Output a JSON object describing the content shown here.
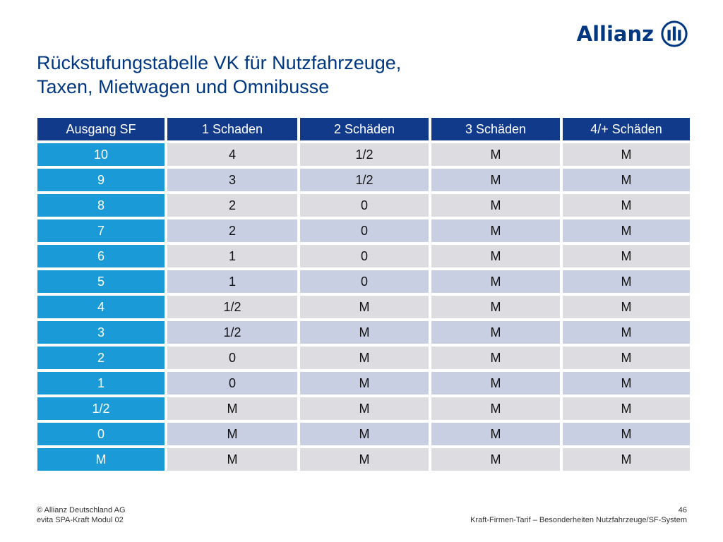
{
  "brand": {
    "name": "Allianz",
    "color": "#003781",
    "logo_icon": "allianz-eagle-icon"
  },
  "title": {
    "line1": "Rückstufungstabelle VK für Nutzfahrzeuge,",
    "line2": "Taxen, Mietwagen und Omnibusse"
  },
  "table": {
    "headers": [
      "Ausgang SF",
      "1 Schaden",
      "2 Schäden",
      "3 Schäden",
      "4/+ Schäden"
    ],
    "rows": [
      [
        "10",
        "4",
        "1/2",
        "M",
        "M"
      ],
      [
        "9",
        "3",
        "1/2",
        "M",
        "M"
      ],
      [
        "8",
        "2",
        "0",
        "M",
        "M"
      ],
      [
        "7",
        "2",
        "0",
        "M",
        "M"
      ],
      [
        "6",
        "1",
        "0",
        "M",
        "M"
      ],
      [
        "5",
        "1",
        "0",
        "M",
        "M"
      ],
      [
        "4",
        "1/2",
        "M",
        "M",
        "M"
      ],
      [
        "3",
        "1/2",
        "M",
        "M",
        "M"
      ],
      [
        "2",
        "0",
        "M",
        "M",
        "M"
      ],
      [
        "1",
        "0",
        "M",
        "M",
        "M"
      ],
      [
        "1/2",
        "M",
        "M",
        "M",
        "M"
      ],
      [
        "0",
        "M",
        "M",
        "M",
        "M"
      ],
      [
        "M",
        "M",
        "M",
        "M",
        "M"
      ]
    ],
    "colors": {
      "header": "#113a8a",
      "row_head": "#1a9ad6",
      "cell_light": "#dddde1",
      "cell_blue": "#c9cfe3"
    }
  },
  "footer": {
    "copyright": "© Allianz Deutschland AG",
    "module": "evita SPA-Kraft Modul 02",
    "page_number": "46",
    "subtitle": "Kraft-Firmen-Tarif – Besonderheiten Nutzfahrzeuge/SF-System"
  }
}
